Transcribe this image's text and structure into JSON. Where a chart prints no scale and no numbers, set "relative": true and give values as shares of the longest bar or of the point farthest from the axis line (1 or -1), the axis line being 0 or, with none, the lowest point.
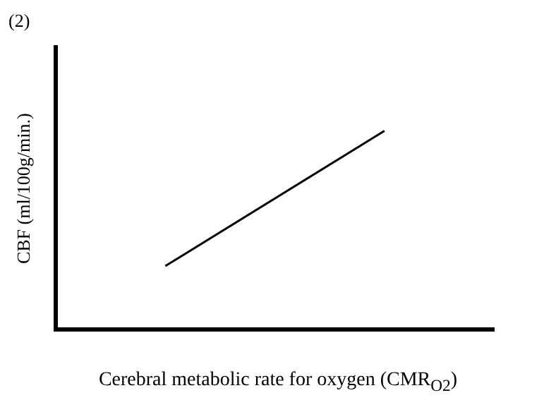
{
  "chart_data": {
    "type": "line",
    "title": "(2)",
    "xlabel": "Cerebral metabolic rate for oxygen (CMR$_{O2}$)",
    "ylabel": "CBF (ml/100g/min.)",
    "relative": true,
    "categories": [
      null,
      null
    ],
    "series": [
      {
        "color": "#000000",
        "values": [
          0.32,
          1
        ]
      }
    ],
    "grid": false,
    "legend": false,
    "marker": "none",
    "line_style": "solid"
  }
}
